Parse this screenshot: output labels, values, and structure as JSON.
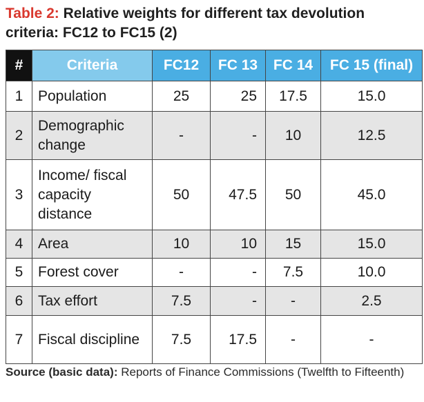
{
  "title": {
    "lead": "Table 2:",
    "rest": " Relative weights for different tax devolution criteria: FC12 to FC15 (2)"
  },
  "table": {
    "headers": [
      "#",
      "Criteria",
      "FC12",
      "FC 13",
      "FC 14",
      "FC 15 (final)"
    ],
    "rows": [
      {
        "num": "1",
        "criteria": "Population",
        "fc12": "25",
        "fc13": "25",
        "fc14": "17.5",
        "fc15": "15.0"
      },
      {
        "num": "2",
        "criteria": "Demographic change",
        "fc12": "-",
        "fc13": "-",
        "fc14": "10",
        "fc15": "12.5"
      },
      {
        "num": "3",
        "criteria": "Income/ fiscal capacity distance",
        "fc12": "50",
        "fc13": "47.5",
        "fc14": "50",
        "fc15": "45.0"
      },
      {
        "num": "4",
        "criteria": "Area",
        "fc12": "10",
        "fc13": "10",
        "fc14": "15",
        "fc15": "15.0"
      },
      {
        "num": "5",
        "criteria": "Forest cover",
        "fc12": "-",
        "fc13": "-",
        "fc14": "7.5",
        "fc15": "10.0"
      },
      {
        "num": "6",
        "criteria": "Tax effort",
        "fc12": "7.5",
        "fc13": "-",
        "fc14": "-",
        "fc15": "2.5"
      },
      {
        "num": "7",
        "criteria": "Fiscal discipline",
        "fc12": "7.5",
        "fc13": "17.5",
        "fc14": "-",
        "fc15": "-"
      }
    ]
  },
  "source": {
    "label": "Source (basic data):",
    "text": " Reports of Finance Commissions (Twelfth to Fifteenth)"
  }
}
